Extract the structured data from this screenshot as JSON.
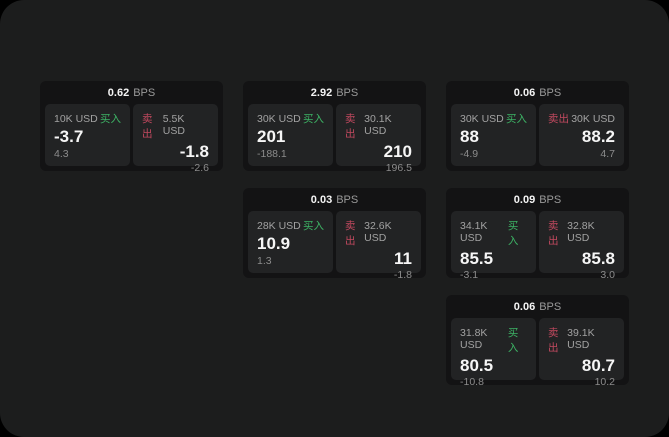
{
  "theme": {
    "page_background": "#000000",
    "panel_background": "#1c1d1d",
    "card_background": "#131314",
    "tile_background": "#222324",
    "buy_color": "#3db465",
    "sell_color": "#c2495f"
  },
  "labels": {
    "bps": "BPS",
    "buy": "买入",
    "sell": "卖出"
  },
  "cards": [
    {
      "bps": "0.62",
      "buy": {
        "amount": "10K USD",
        "value": "-3.7",
        "sub": "4.3"
      },
      "sell": {
        "amount": "5.5K USD",
        "value": "-1.8",
        "sub": "-2.6"
      }
    },
    {
      "bps": "2.92",
      "buy": {
        "amount": "30K USD",
        "value": "201",
        "sub": "-188.1"
      },
      "sell": {
        "amount": "30.1K USD",
        "value": "210",
        "sub": "196.5"
      }
    },
    {
      "bps": "0.06",
      "buy": {
        "amount": "30K USD",
        "value": "88",
        "sub": "-4.9"
      },
      "sell": {
        "amount": "30K USD",
        "value": "88.2",
        "sub": "4.7"
      }
    },
    {
      "bps": "0.03",
      "buy": {
        "amount": "28K USD",
        "value": "10.9",
        "sub": "1.3"
      },
      "sell": {
        "amount": "32.6K USD",
        "value": "11",
        "sub": "-1.8"
      }
    },
    {
      "bps": "0.09",
      "buy": {
        "amount": "34.1K USD",
        "value": "85.5",
        "sub": "-3.1"
      },
      "sell": {
        "amount": "32.8K USD",
        "value": "85.8",
        "sub": "3.0"
      }
    },
    {
      "bps": "0.06",
      "buy": {
        "amount": "31.8K USD",
        "value": "80.5",
        "sub": "-10.8"
      },
      "sell": {
        "amount": "39.1K USD",
        "value": "80.7",
        "sub": "10.2"
      }
    }
  ]
}
